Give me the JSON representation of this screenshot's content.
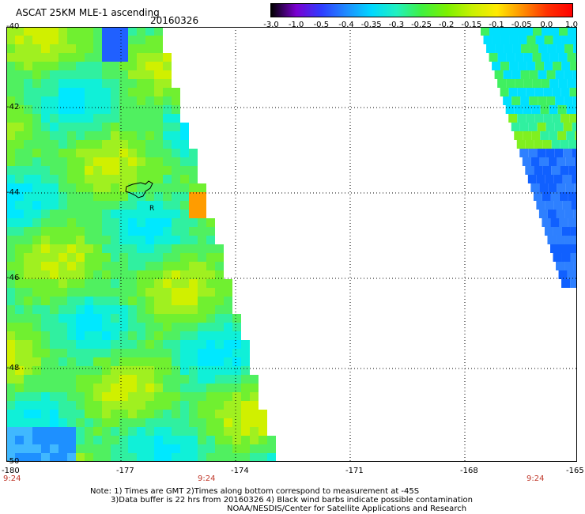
{
  "header": {
    "title": "ASCAT 25KM MLE-1 ascending",
    "date": "20160326"
  },
  "colorbar": {
    "labels": [
      "-3.0",
      "-1.0",
      "-0.5",
      "-0.4",
      "-0.35",
      "-0.3",
      "-0.25",
      "-0.2",
      "-0.15",
      "-0.1",
      "-0.05",
      "0.0",
      "1.0"
    ],
    "colors": [
      "#000000",
      "#7a00d0",
      "#2f3cff",
      "#1e8cff",
      "#00d8ff",
      "#20f0c0",
      "#40f040",
      "#7cf000",
      "#c8f000",
      "#ffea00",
      "#ff9000",
      "#ff3000",
      "#ff0000"
    ]
  },
  "map": {
    "y_ticks": [
      "-40",
      "-42",
      "-44",
      "-46",
      "-48",
      "-50"
    ],
    "x_ticks": [
      "-180",
      "-177",
      "-174",
      "-171",
      "-168",
      "-165"
    ],
    "times": [
      "9:24",
      "9:24",
      "9:24"
    ],
    "island_label": "R"
  },
  "notes": {
    "line1": "Note: 1) Times are GMT 2)Times along bottom correspond to measurement at -45S",
    "line2": "3)Data buffer is 22 hrs from 20160326 4) Black wind barbs indicate possible contamination",
    "line3": "NOAA/NESDIS/Center for Satellite Applications and Research"
  }
}
